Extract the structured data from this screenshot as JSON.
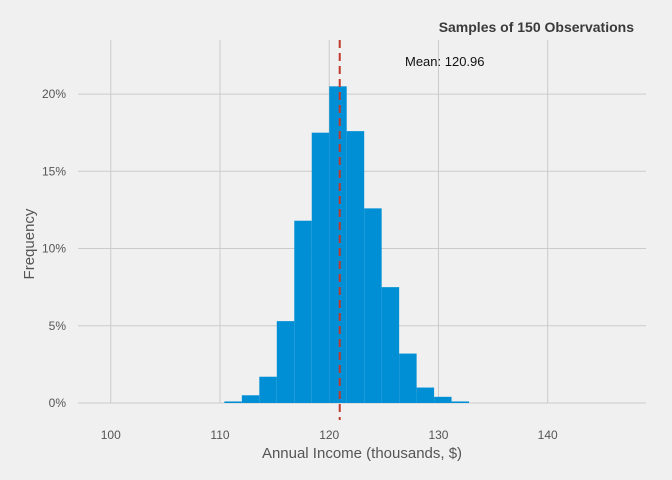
{
  "chart_data": {
    "type": "bar",
    "subtype": "histogram",
    "title": "Samples of 150 Observations",
    "xlabel": "Annual Income (thousands, $)",
    "ylabel": "Frequency",
    "xlim": [
      97,
      149
    ],
    "ylim": [
      0,
      0.235
    ],
    "x_ticks": [
      100,
      110,
      120,
      130,
      140
    ],
    "x_tick_labels": [
      "100",
      "110",
      "120",
      "130",
      "140"
    ],
    "y_ticks": [
      0,
      0.05,
      0.1,
      0.15,
      0.2
    ],
    "y_tick_labels": [
      "0%",
      "5%",
      "10%",
      "15%",
      "20%"
    ],
    "grid": true,
    "bar_color": "#008fd5",
    "mean": 120.96,
    "mean_line_color": "#c0392b",
    "mean_label": "Mean: 120.96",
    "bin_edges": [
      110.4,
      112.0,
      113.6,
      115.2,
      116.8,
      118.4,
      120.0,
      121.6,
      123.2,
      124.8,
      126.4,
      128.0,
      129.6,
      131.2,
      132.8
    ],
    "values": [
      0.001,
      0.005,
      0.017,
      0.053,
      0.118,
      0.175,
      0.205,
      0.176,
      0.126,
      0.075,
      0.032,
      0.01,
      0.004,
      0.001
    ]
  }
}
